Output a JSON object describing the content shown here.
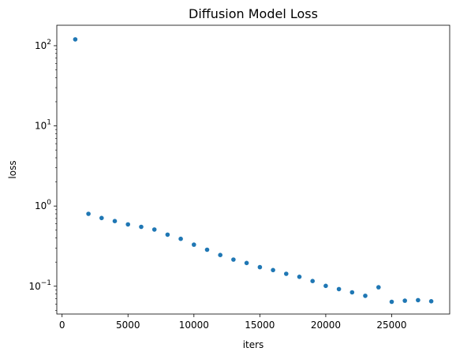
{
  "chart_data": {
    "type": "scatter",
    "title": "Diffusion Model Loss",
    "xlabel": "iters",
    "ylabel": "loss",
    "xlim": [
      -400,
      29400
    ],
    "ylim": [
      0.045,
      180
    ],
    "yscale": "log",
    "grid": false,
    "color": "#1f77b4",
    "x_ticks": [
      0,
      5000,
      10000,
      15000,
      20000,
      25000
    ],
    "y_ticks": [
      {
        "value": 100,
        "base": "10",
        "exp": "2"
      },
      {
        "value": 10,
        "base": "10",
        "exp": "1"
      },
      {
        "value": 1,
        "base": "10",
        "exp": "0"
      },
      {
        "value": 0.1,
        "base": "10",
        "exp": "−1"
      }
    ],
    "x": [
      1000,
      2000,
      3000,
      4000,
      5000,
      6000,
      7000,
      8000,
      9000,
      10000,
      11000,
      12000,
      13000,
      14000,
      15000,
      16000,
      17000,
      18000,
      19000,
      20000,
      21000,
      22000,
      23000,
      24000,
      25000,
      26000,
      27000,
      28000
    ],
    "y": [
      120,
      0.8,
      0.71,
      0.65,
      0.59,
      0.55,
      0.51,
      0.44,
      0.39,
      0.33,
      0.285,
      0.245,
      0.215,
      0.195,
      0.173,
      0.159,
      0.143,
      0.131,
      0.116,
      0.101,
      0.092,
      0.084,
      0.076,
      0.097,
      0.064,
      0.066,
      0.067,
      0.065
    ]
  }
}
